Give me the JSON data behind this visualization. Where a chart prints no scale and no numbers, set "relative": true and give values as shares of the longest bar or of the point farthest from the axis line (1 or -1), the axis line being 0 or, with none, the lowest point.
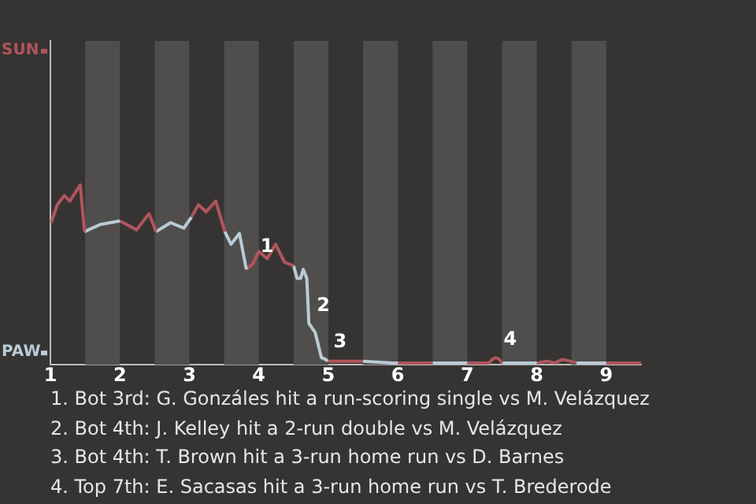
{
  "chart_data": {
    "type": "line",
    "relative": true,
    "legend": "left",
    "xlim": [
      1,
      9.5
    ],
    "xticks": [
      1,
      2,
      3,
      4,
      5,
      6,
      7,
      8,
      9
    ],
    "series": [
      {
        "name": "SUN",
        "color": "#b0555d",
        "x": [
          1.01,
          1.1,
          1.2,
          1.28,
          1.43,
          1.49
        ],
        "values": [
          0.79,
          0.89,
          0.94,
          0.91,
          1,
          0.74
        ]
      },
      {
        "name": "PAW",
        "color": "#b9cbd6",
        "x": [
          1.49,
          1.72,
          2.0
        ],
        "values": [
          0.74,
          0.78,
          0.8
        ]
      },
      {
        "color": "#b0555d",
        "x": [
          2.0,
          2.24,
          2.42,
          2.52
        ],
        "values": [
          0.8,
          0.75,
          0.84,
          0.74
        ]
      },
      {
        "color": "#b9cbd6",
        "x": [
          2.52,
          2.73,
          2.92,
          3.03
        ],
        "values": [
          0.74,
          0.79,
          0.76,
          0.82
        ]
      },
      {
        "color": "#b0555d",
        "x": [
          3.03,
          3.13,
          3.24,
          3.38,
          3.51
        ],
        "values": [
          0.82,
          0.89,
          0.85,
          0.91,
          0.74
        ]
      },
      {
        "color": "#b9cbd6",
        "x": [
          3.51,
          3.6,
          3.72,
          3.82
        ],
        "values": [
          0.74,
          0.67,
          0.73,
          0.53
        ]
      },
      {
        "color": "#b0555d",
        "x": [
          3.82,
          3.91,
          4.0,
          4.12,
          4.24,
          4.37,
          4.5
        ],
        "values": [
          0.53,
          0.56,
          0.63,
          0.59,
          0.67,
          0.57,
          0.55
        ]
      },
      {
        "color": "#b9cbd6",
        "x": [
          4.5,
          4.55,
          4.6,
          4.64,
          4.69,
          4.72,
          4.81,
          4.9,
          4.96,
          4.99
        ],
        "values": [
          0.55,
          0.48,
          0.48,
          0.53,
          0.48,
          0.23,
          0.18,
          0.04,
          0.03,
          0.02
        ]
      },
      {
        "color": "#b0555d",
        "x": [
          4.99,
          5.2,
          5.5
        ],
        "values": [
          0.02,
          0.02,
          0.02
        ]
      },
      {
        "color": "#b9cbd6",
        "x": [
          5.5,
          5.92,
          6.0
        ],
        "values": [
          0.02,
          0.01,
          0.01
        ]
      },
      {
        "color": "#b0555d",
        "x": [
          6.0,
          6.5
        ],
        "values": [
          0.01,
          0.01
        ]
      },
      {
        "color": "#b9cbd6",
        "x": [
          6.5,
          7.0
        ],
        "values": [
          0.01,
          0.01
        ]
      },
      {
        "color": "#b0555d",
        "x": [
          7.0,
          7.31,
          7.36,
          7.41,
          7.46,
          7.5
        ],
        "values": [
          0.01,
          0.01,
          0.03,
          0.04,
          0.03,
          0.01
        ]
      },
      {
        "color": "#b9cbd6",
        "x": [
          7.5,
          8.0
        ],
        "values": [
          0.01,
          0.01
        ]
      },
      {
        "color": "#b0555d",
        "x": [
          8.0,
          8.15,
          8.26,
          8.37,
          8.48,
          8.57
        ],
        "values": [
          0.01,
          0.02,
          0.01,
          0.03,
          0.02,
          0.01
        ]
      },
      {
        "color": "#b9cbd6",
        "x": [
          8.57,
          9.0
        ],
        "values": [
          0.01,
          0.01
        ]
      },
      {
        "color": "#b0555d",
        "x": [
          9.0,
          9.5
        ],
        "values": [
          0.01,
          0.01
        ]
      }
    ],
    "bands": [
      {
        "axis": "x",
        "from": 1.5,
        "to": 2,
        "color": "#4f4e4c"
      },
      {
        "axis": "x",
        "from": 2.5,
        "to": 3,
        "color": "#4f4e4c"
      },
      {
        "axis": "x",
        "from": 3.5,
        "to": 4,
        "color": "#4f4e4c"
      },
      {
        "axis": "x",
        "from": 4.5,
        "to": 5,
        "color": "#4f4e4c"
      },
      {
        "axis": "x",
        "from": 5.5,
        "to": 6,
        "color": "#4f4e4c"
      },
      {
        "axis": "x",
        "from": 6.5,
        "to": 7,
        "color": "#4f4e4c"
      },
      {
        "axis": "x",
        "from": 7.5,
        "to": 8,
        "color": "#4f4e4c"
      },
      {
        "axis": "x",
        "from": 8.5,
        "to": 9,
        "color": "#4f4e4c"
      }
    ],
    "annotations": [
      {
        "text": "1",
        "x": 3.91,
        "y": 0.56
      },
      {
        "text": "2",
        "x": 4.72,
        "y": 0.23
      },
      {
        "text": "3",
        "x": 4.96,
        "y": 0.03
      },
      {
        "text": "4",
        "x": 7.41,
        "y": 0.04
      },
      "1. Bot 3rd: G. Gonzáles hit a run-scoring single vs M. Velázquez",
      "2. Bot 4th: J. Kelley hit a 2-run double vs M. Velázquez",
      "3. Bot 4th: T. Brown hit a 3-run home run vs D. Barnes",
      "4. Top 7th: E. Sacasas hit a 3-run home run vs T. Brederode"
    ]
  }
}
